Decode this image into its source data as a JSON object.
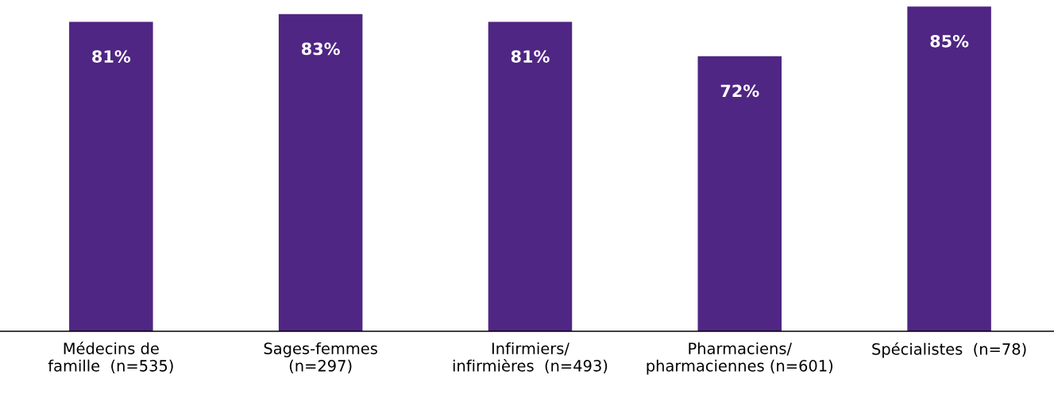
{
  "chart_data": {
    "type": "bar",
    "categories": [
      "Médecins de\nfamille  (n=535)",
      "Sages-femmes\n(n=297)",
      "Infirmiers/\ninfirmières  (n=493)",
      "Pharmaciens/\npharmaciennes (n=601)",
      "Spécialistes  (n=78)"
    ],
    "values": [
      81,
      83,
      81,
      72,
      85
    ],
    "value_labels": [
      "81%",
      "83%",
      "81%",
      "72%",
      "85%"
    ],
    "color": "#4f2683",
    "tick_labels": "x",
    "grid": false,
    "legend": false
  }
}
